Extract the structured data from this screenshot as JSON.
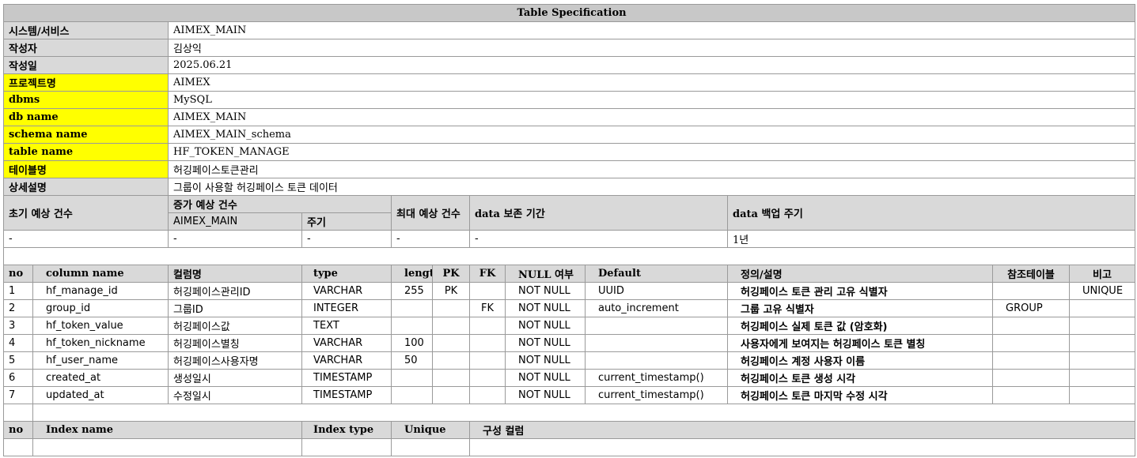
{
  "title": "Table Specification",
  "meta": [
    {
      "label": "시스템/서비스",
      "value": "AIMEX_MAIN",
      "highlight": false
    },
    {
      "label": "작성자",
      "value": "김상익",
      "highlight": false
    },
    {
      "label": "작성일",
      "value": "2025.06.21",
      "highlight": false
    },
    {
      "label": "프로젝트명",
      "value": "AIMEX",
      "highlight": true
    },
    {
      "label": "dbms",
      "value": "MySQL",
      "highlight": true
    },
    {
      "label": "db name",
      "value": "AIMEX_MAIN",
      "highlight": true
    },
    {
      "label": "schema name",
      "value": "AIMEX_MAIN_schema",
      "highlight": true
    },
    {
      "label": "table name",
      "value": "HF_TOKEN_MANAGE",
      "highlight": true
    },
    {
      "label": "테이블명",
      "value": "허깅페이스토큰관리",
      "highlight": true
    },
    {
      "label": "상세설명",
      "value": "그룹이 사용할 허깅페이스 토큰 데이터",
      "highlight": false
    }
  ],
  "volume": {
    "initial_label": "초기 예상 건수",
    "growth_label": "증가 예상 건수",
    "growth_sub1": "AIMEX_MAIN",
    "growth_sub2": "주기",
    "max_label": "최대 예상 건수",
    "retention_label": "data 보존 기간",
    "backup_label": "data 백업 주기",
    "values": {
      "initial": "-",
      "growth_main": "-",
      "growth_cycle": "-",
      "max": "-",
      "retention": "-",
      "backup": "1년"
    }
  },
  "columns_header": {
    "no": "no",
    "column_name": "column name",
    "kor_name": "컬럼명",
    "type": "type",
    "length": "length",
    "pk": "PK",
    "fk": "FK",
    "nullable": "NULL 여부",
    "default": "Default",
    "description": "정의/설명",
    "ref_table": "참조테이블",
    "note": "비고"
  },
  "columns": [
    {
      "no": "1",
      "column_name": "hf_manage_id",
      "kor_name": "허깅페이스관리ID",
      "type": "VARCHAR",
      "length": "255",
      "pk": "PK",
      "fk": "",
      "nullable": "NOT NULL",
      "default": "UUID",
      "description": "허깅페이스 토큰 관리 고유 식별자",
      "ref_table": "",
      "note": "UNIQUE"
    },
    {
      "no": "2",
      "column_name": "group_id",
      "kor_name": "그룹ID",
      "type": "INTEGER",
      "length": "",
      "pk": "",
      "fk": "FK",
      "nullable": "NOT NULL",
      "default": "auto_increment",
      "description": "그룹 고유 식별자",
      "ref_table": "GROUP",
      "note": ""
    },
    {
      "no": "3",
      "column_name": "hf_token_value",
      "kor_name": "허깅페이스값",
      "type": "TEXT",
      "length": "",
      "pk": "",
      "fk": "",
      "nullable": "NOT NULL",
      "default": "",
      "description": "허깅페이스 실제 토큰 값 (암호화)",
      "ref_table": "",
      "note": ""
    },
    {
      "no": "4",
      "column_name": "hf_token_nickname",
      "kor_name": "허깅페이스별칭",
      "type": "VARCHAR",
      "length": "100",
      "pk": "",
      "fk": "",
      "nullable": "NOT NULL",
      "default": "",
      "description": "사용자에게 보여지는 허깅페이스 토큰 별칭",
      "ref_table": "",
      "note": ""
    },
    {
      "no": "5",
      "column_name": "hf_user_name",
      "kor_name": "허깅페이스사용자명",
      "type": "VARCHAR",
      "length": "50",
      "pk": "",
      "fk": "",
      "nullable": "NOT NULL",
      "default": "",
      "description": "허깅페이스 계정 사용자 이름",
      "ref_table": "",
      "note": ""
    },
    {
      "no": "6",
      "column_name": "created_at",
      "kor_name": "생성일시",
      "type": "TIMESTAMP",
      "length": "",
      "pk": "",
      "fk": "",
      "nullable": "NOT NULL",
      "default": "current_timestamp()",
      "description": "허깅페이스 토큰 생성 시각",
      "ref_table": "",
      "note": ""
    },
    {
      "no": "7",
      "column_name": "updated_at",
      "kor_name": "수정일시",
      "type": "TIMESTAMP",
      "length": "",
      "pk": "",
      "fk": "",
      "nullable": "NOT NULL",
      "default": "current_timestamp()",
      "description": "허깅페이스 토큰 마지막 수정 시각",
      "ref_table": "",
      "note": ""
    }
  ],
  "index_header": {
    "no": "no",
    "index_name": "Index name",
    "index_type": "Index type",
    "unique": "Unique",
    "columns": "구성 컬럼"
  }
}
